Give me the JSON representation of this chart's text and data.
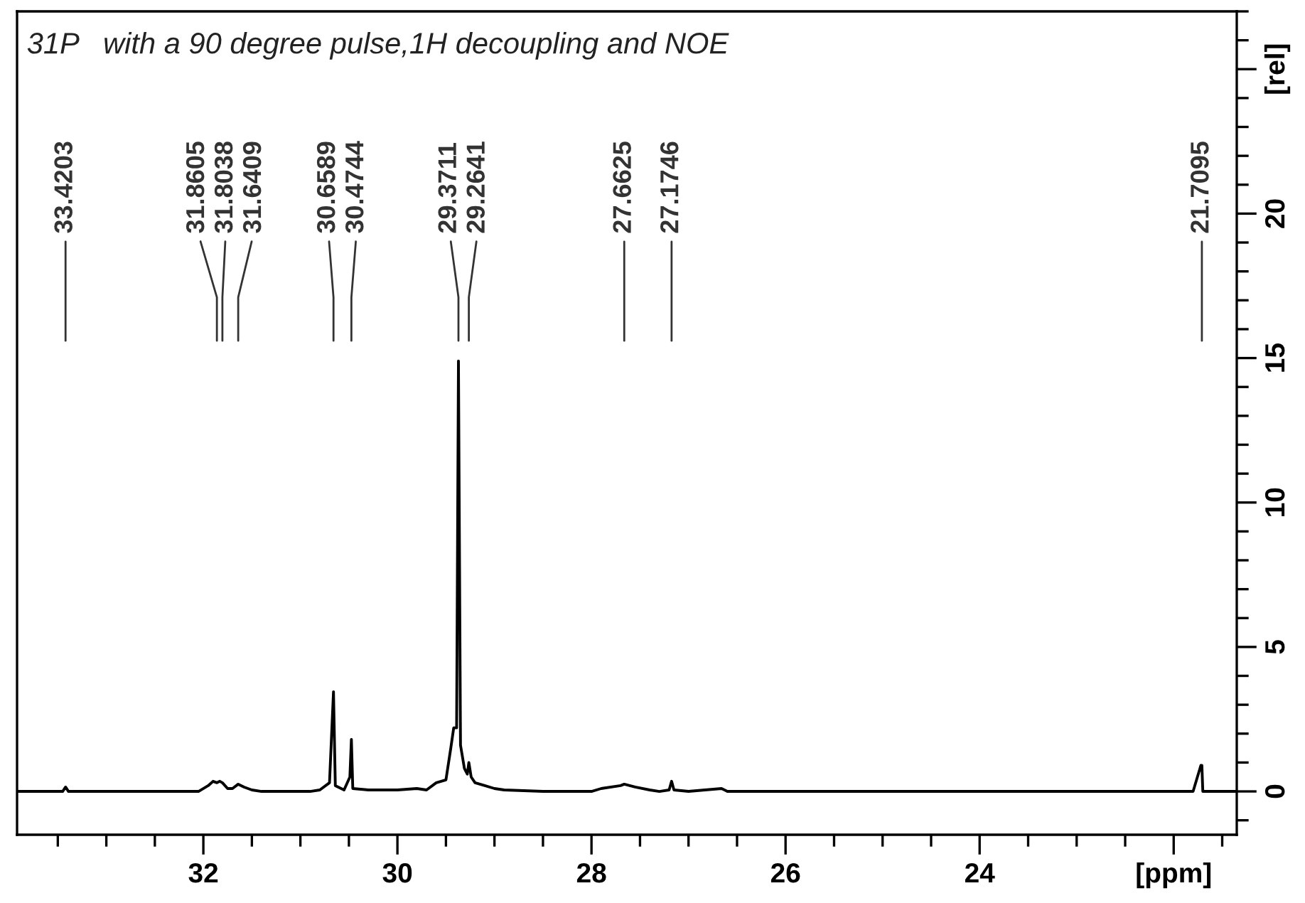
{
  "chart_data": {
    "type": "line",
    "title": "31P   with a 90 degree pulse,1H decoupling and NOE",
    "x": [
      33.92,
      33.45,
      33.42,
      33.39,
      32.05,
      31.95,
      31.9,
      31.8605,
      31.83,
      31.8038,
      31.75,
      31.7,
      31.6409,
      31.58,
      31.5,
      31.4,
      30.9,
      30.8,
      30.7,
      30.6589,
      30.64,
      30.55,
      30.49,
      30.4744,
      30.46,
      30.3,
      30.0,
      29.8,
      29.7,
      29.6,
      29.5,
      29.45,
      29.42,
      29.39,
      29.3711,
      29.35,
      29.31,
      29.28,
      29.2641,
      29.24,
      29.2,
      29.1,
      29.0,
      28.9,
      28.5,
      28.0,
      27.9,
      27.7,
      27.6625,
      27.55,
      27.4,
      27.3,
      27.2,
      27.1746,
      27.15,
      27.0,
      26.66,
      26.6,
      21.8,
      21.72,
      21.7095,
      21.7,
      21.35
    ],
    "series": [
      {
        "color": "#000000",
        "values": [
          0,
          0,
          0.15,
          0,
          0,
          0.2,
          0.35,
          0.3,
          0.35,
          0.3,
          0.1,
          0.1,
          0.25,
          0.15,
          0.05,
          0,
          0,
          0.05,
          0.3,
          3.45,
          0.2,
          0.05,
          0.5,
          1.8,
          0.1,
          0.05,
          0.05,
          0.1,
          0.05,
          0.3,
          0.4,
          1.5,
          2.2,
          2.2,
          14.9,
          1.6,
          0.8,
          0.6,
          1.0,
          0.5,
          0.3,
          0.2,
          0.1,
          0.05,
          0,
          0,
          0.1,
          0.2,
          0.25,
          0.15,
          0.05,
          0,
          0.05,
          0.35,
          0.05,
          0,
          0.1,
          0,
          0,
          0.9,
          0.9,
          0,
          0
        ]
      }
    ],
    "xlim": [
      33.92,
      21.35
    ],
    "xticks": [
      32,
      30,
      28,
      26,
      24,
      {
        "value": 22,
        "label": "[ppm]"
      }
    ],
    "ylim": [
      -1.5,
      27.0
    ],
    "yticks": [
      0,
      5,
      10,
      15,
      20,
      {
        "value": 25,
        "label": "[rel]"
      }
    ],
    "marker": "none",
    "line_style": "solid",
    "grid": false,
    "legend": false,
    "annotations": [
      "33.4203",
      "31.8605",
      "31.8038",
      "31.6409",
      "30.6589",
      "30.4744",
      "29.3711",
      "29.2641",
      "27.6625",
      "27.1746",
      "21.7095"
    ]
  }
}
